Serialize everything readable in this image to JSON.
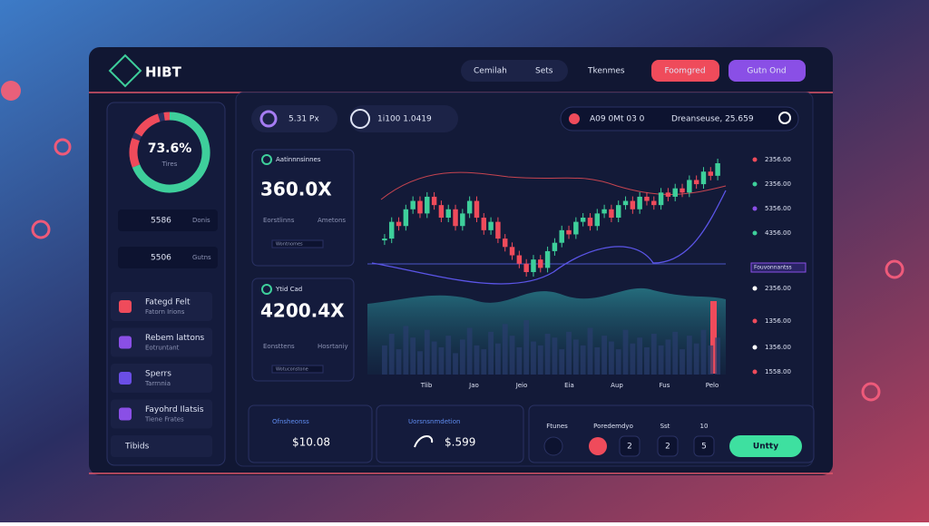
{
  "header": {
    "logo": "HIBT",
    "nav": [
      "Cemilah",
      "Sets",
      "Tkenmes"
    ],
    "buttons": [
      "Foomgred",
      "Gutn Ond"
    ]
  },
  "sidebar": {
    "gauge_value": "73.6%",
    "gauge_label": "Tires",
    "stats": [
      {
        "value": "5586",
        "label": "Donis"
      },
      {
        "value": "5506",
        "label": "Gutns"
      }
    ],
    "items": [
      {
        "title": "Fategd Felt",
        "sub": "Fatorn Irions"
      },
      {
        "title": "Rebem lattons",
        "sub": "Eotruntant"
      },
      {
        "title": "Sperrs",
        "sub": "Tarrnnia"
      },
      {
        "title": "Fayohrd Ilatsis",
        "sub": "Tiene Frates"
      }
    ],
    "footer": "Tibids"
  },
  "topbar": {
    "left": [
      "5.31 Px",
      "1i100 1.0419"
    ],
    "right": [
      "A09 0Mt 03 0",
      "Dreanseuse, 25.659"
    ]
  },
  "cards": [
    {
      "title": "Aatinnnsinnes",
      "value": "360.0X",
      "sub1": "Eorstlinns",
      "sub2": "Ametons",
      "foot": "Wontnomes"
    },
    {
      "title": "Ytid Cad",
      "value": "4200.4X",
      "sub1": "Eonsttens",
      "sub2": "Hosrtaniy",
      "foot": "Wotuconstone"
    }
  ],
  "chart": {
    "x_labels": [
      "Tlib",
      "Jao",
      "Jeio",
      "Eia",
      "Aup",
      "Fus",
      "Pelo"
    ],
    "price_labels": [
      "2356.00",
      "2356.00",
      "5356.00",
      "4356.00",
      "2356.00",
      "1356.00",
      "1356.00",
      "1558.00"
    ],
    "legend": "Fouvonnantss",
    "closes": [
      52,
      60,
      58,
      66,
      70,
      64,
      72,
      68,
      62,
      66,
      58,
      64,
      70,
      62,
      56,
      60,
      52,
      48,
      44,
      40,
      36,
      42,
      38,
      46,
      50,
      56,
      54,
      60,
      62,
      58,
      64,
      66,
      62,
      68,
      70,
      66,
      72,
      70,
      68,
      74,
      72,
      76,
      74,
      80,
      78,
      84,
      82,
      88
    ],
    "volume": [
      30,
      42,
      26,
      50,
      38,
      24,
      46,
      34,
      28,
      40,
      22,
      36,
      48,
      30,
      26,
      44,
      32,
      52,
      40,
      28,
      56,
      34,
      30,
      42,
      38,
      26,
      44,
      36,
      30,
      48,
      28,
      40,
      34,
      26,
      46,
      32,
      38,
      28,
      42,
      30,
      36,
      44,
      26,
      40,
      32,
      46,
      30,
      38
    ]
  },
  "bottom": {
    "card1": {
      "title": "Ofnsheonss",
      "value": "$10.08"
    },
    "card2": {
      "title": "Uorsnsnmdetion",
      "value": "$.599"
    },
    "controls": {
      "labels": [
        "Ftunes",
        "Poredemdyo",
        "Sst",
        "10"
      ],
      "keys": [
        "2",
        "2",
        "5"
      ],
      "action": "Untty"
    }
  }
}
